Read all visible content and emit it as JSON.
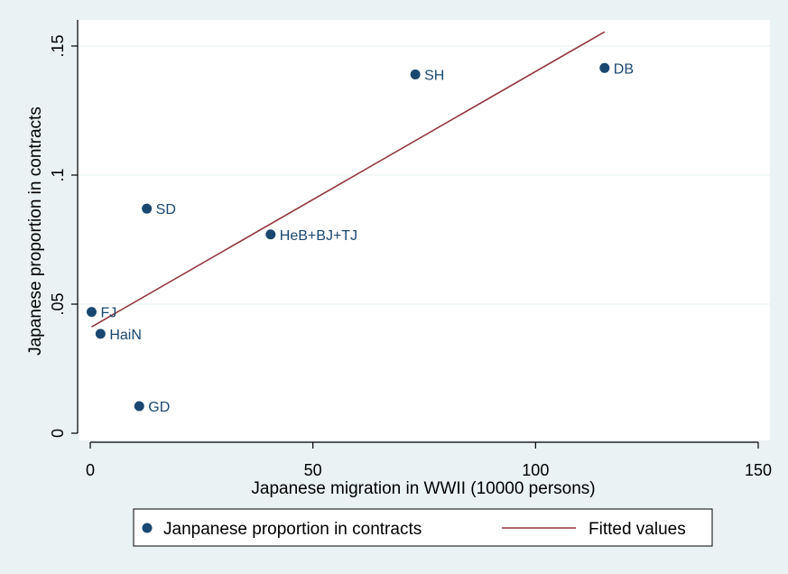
{
  "chart_data": {
    "type": "scatter",
    "title": "",
    "xlabel": "Japanese migration in WWII (10000 persons)",
    "ylabel": "Japanese proportion in contracts",
    "xlim": [
      0,
      150
    ],
    "ylim": [
      0,
      0.15
    ],
    "x_ticks": [
      0,
      50,
      100,
      150
    ],
    "x_tick_labels": [
      "0",
      "50",
      "100",
      "150"
    ],
    "y_ticks": [
      0,
      0.05,
      0.1,
      0.15
    ],
    "y_tick_labels": [
      "0",
      ".05",
      ".1",
      ".15"
    ],
    "grid": "horizontal",
    "series": [
      {
        "name": "Janpanese proportion in contracts",
        "kind": "scatter",
        "color": "#1a476f",
        "points": [
          {
            "label": "FJ",
            "x": 0.3,
            "y": 0.047
          },
          {
            "label": "HaiN",
            "x": 2.3,
            "y": 0.0385
          },
          {
            "label": "GD",
            "x": 11,
            "y": 0.0105
          },
          {
            "label": "SD",
            "x": 12.7,
            "y": 0.087
          },
          {
            "label": "HeB+BJ+TJ",
            "x": 40.5,
            "y": 0.077
          },
          {
            "label": "SH",
            "x": 73,
            "y": 0.139
          },
          {
            "label": "DB",
            "x": 115.5,
            "y": 0.1415
          }
        ]
      },
      {
        "name": "Fitted values",
        "kind": "line",
        "color": "#90353b",
        "points": [
          {
            "x": 0.3,
            "y": 0.0412
          },
          {
            "x": 115.5,
            "y": 0.1555
          }
        ]
      }
    ],
    "legend": {
      "position": "bottom",
      "entries": [
        "Janpanese proportion in contracts",
        "Fitted values"
      ]
    }
  }
}
